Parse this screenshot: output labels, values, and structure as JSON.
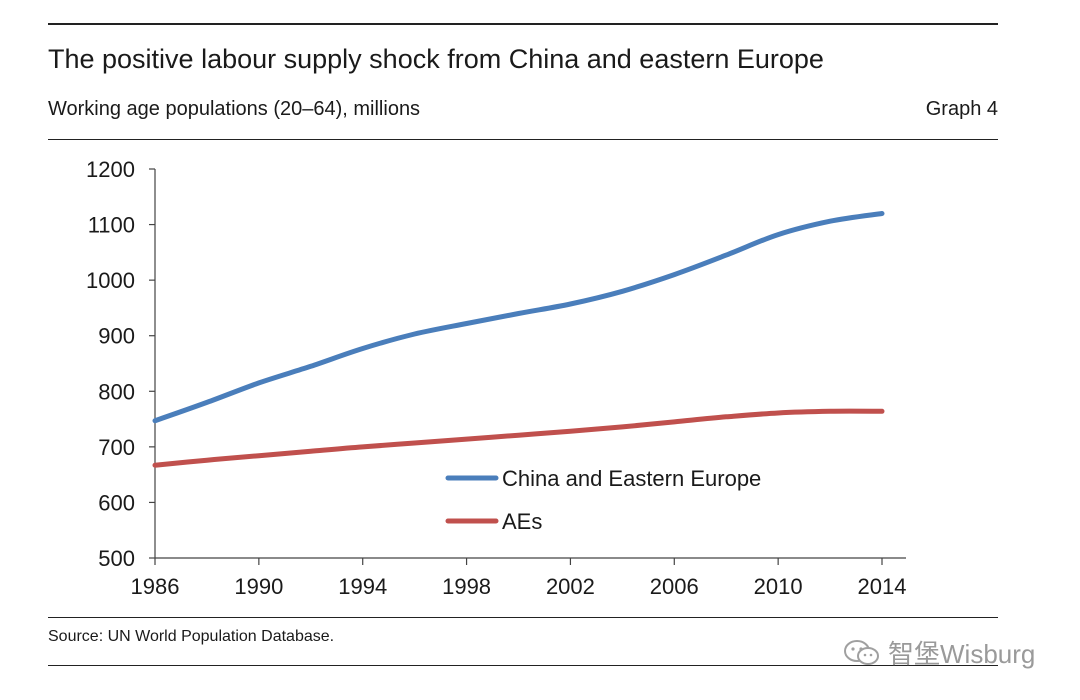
{
  "header": {
    "title": "The positive labour supply shock from China and eastern Europe",
    "subtitle": "Working age populations (20–64), millions",
    "graph_label": "Graph 4"
  },
  "footer": {
    "source": "Source: UN World Population Database.",
    "watermark": "智堡Wisburg"
  },
  "colors": {
    "china": "#4a7ebb",
    "aes": "#c0504d",
    "axis": "#444444"
  },
  "chart_data": {
    "type": "line",
    "title": "The positive labour supply shock from China and eastern Europe",
    "subtitle": "Working age populations (20–64), millions",
    "xlabel": "",
    "ylabel": "",
    "xlim": [
      1986,
      2014
    ],
    "ylim": [
      500,
      1200
    ],
    "x_ticks": [
      1986,
      1990,
      1994,
      1998,
      2002,
      2006,
      2010,
      2014
    ],
    "y_ticks": [
      500,
      600,
      700,
      800,
      900,
      1000,
      1100,
      1200
    ],
    "grid": false,
    "legend_position": "center-bottom",
    "x": [
      1986,
      1988,
      1990,
      1992,
      1994,
      1996,
      1998,
      2000,
      2002,
      2004,
      2006,
      2008,
      2010,
      2012,
      2014
    ],
    "series": [
      {
        "name": "China and Eastern Europe",
        "color": "#4a7ebb",
        "values": [
          747,
          780,
          815,
          845,
          877,
          903,
          922,
          940,
          957,
          980,
          1010,
          1045,
          1082,
          1106,
          1120
        ]
      },
      {
        "name": "AEs",
        "color": "#c0504d",
        "values": [
          667,
          676,
          684,
          692,
          700,
          707,
          714,
          721,
          728,
          736,
          745,
          754,
          761,
          764,
          764
        ]
      }
    ]
  }
}
